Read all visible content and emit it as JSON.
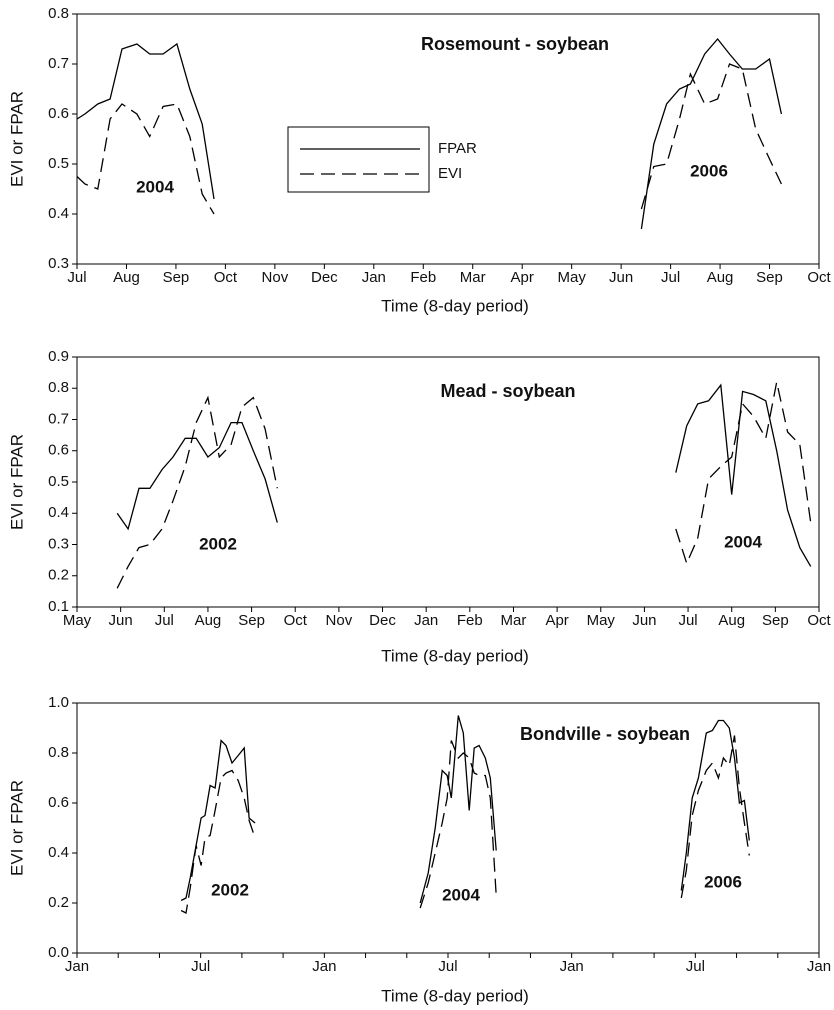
{
  "chart_data": [
    {
      "type": "line",
      "title": "Rosemount - soybean",
      "xlabel": "Time (8-day period)",
      "ylabel": "EVI or FPAR",
      "annotations": [
        "2004",
        "2006"
      ],
      "legend": true,
      "legend_position": "center",
      "x": [
        0,
        0.16,
        0.42,
        0.67,
        0.91,
        1.21,
        1.47,
        1.74,
        2.02,
        2.28,
        2.53,
        2.77,
        null,
        11.41,
        11.66,
        11.92,
        12.18,
        12.4,
        12.69,
        12.95,
        13.19,
        13.45,
        13.72,
        14.0,
        14.24
      ],
      "series": [
        {
          "name": "FPAR",
          "color": "#000000",
          "dash": "solid",
          "values": [
            0.59,
            0.6,
            0.62,
            0.63,
            0.73,
            0.74,
            0.72,
            0.72,
            0.74,
            0.65,
            0.58,
            0.43,
            null,
            0.37,
            0.54,
            0.62,
            0.65,
            0.66,
            0.72,
            0.75,
            0.72,
            0.69,
            0.69,
            0.71,
            0.6
          ]
        },
        {
          "name": "EVI",
          "color": "#000000",
          "dash": "dashed",
          "values": [
            0.475,
            0.46,
            0.45,
            0.59,
            0.62,
            0.6,
            0.555,
            0.615,
            0.62,
            0.555,
            0.44,
            0.4,
            null,
            0.41,
            0.495,
            0.5,
            0.59,
            0.68,
            0.62,
            0.63,
            0.7,
            0.69,
            0.57,
            0.51,
            0.46
          ]
        }
      ],
      "xlim": [
        0,
        15
      ],
      "xticks": [
        {
          "value": 0,
          "label": "Jul"
        },
        {
          "value": 1,
          "label": "Aug"
        },
        {
          "value": 2,
          "label": "Sep"
        },
        {
          "value": 3,
          "label": "Oct"
        },
        {
          "value": 4,
          "label": "Nov"
        },
        {
          "value": 5,
          "label": "Dec"
        },
        {
          "value": 6,
          "label": "Jan"
        },
        {
          "value": 7,
          "label": "Feb"
        },
        {
          "value": 8,
          "label": "Mar"
        },
        {
          "value": 9,
          "label": "Apr"
        },
        {
          "value": 10,
          "label": "May"
        },
        {
          "value": 11,
          "label": "Jun"
        },
        {
          "value": 12,
          "label": "Jul"
        },
        {
          "value": 13,
          "label": "Aug"
        },
        {
          "value": 14,
          "label": "Sep"
        },
        {
          "value": 15,
          "label": "Oct"
        }
      ],
      "ylim": [
        0.3,
        0.8
      ],
      "yticks": [
        0.3,
        0.4,
        0.5,
        0.6,
        0.7,
        0.8
      ]
    },
    {
      "type": "line",
      "title": "Mead - soybean",
      "xlabel": "Time (8-day period)",
      "ylabel": "EVI or FPAR",
      "annotations": [
        "2002",
        "2004"
      ],
      "legend": false,
      "x": [
        0.92,
        1.17,
        1.42,
        1.67,
        1.95,
        2.2,
        2.48,
        2.73,
        3.0,
        3.26,
        3.53,
        3.78,
        4.04,
        4.31,
        4.59,
        null,
        13.72,
        13.97,
        14.22,
        14.47,
        14.75,
        15.0,
        15.25,
        15.5,
        15.78,
        16.03,
        16.28,
        16.56,
        16.81
      ],
      "series": [
        {
          "name": "FPAR",
          "color": "#000000",
          "dash": "solid",
          "values": [
            0.4,
            0.35,
            0.48,
            0.48,
            0.54,
            0.58,
            0.64,
            0.64,
            0.58,
            0.61,
            0.69,
            0.69,
            0.6,
            0.51,
            0.37,
            null,
            0.53,
            0.68,
            0.75,
            0.76,
            0.81,
            0.46,
            0.79,
            0.78,
            0.76,
            0.6,
            0.41,
            0.29,
            0.23
          ]
        },
        {
          "name": "EVI",
          "color": "#000000",
          "dash": "dashed",
          "values": [
            0.16,
            0.23,
            0.29,
            0.3,
            0.35,
            0.44,
            0.55,
            0.69,
            0.77,
            0.58,
            0.62,
            0.74,
            0.77,
            0.67,
            0.48,
            null,
            0.35,
            0.24,
            0.32,
            0.51,
            0.55,
            0.58,
            0.75,
            0.71,
            0.64,
            0.82,
            0.66,
            0.62,
            0.37
          ]
        }
      ],
      "xlim": [
        0,
        17
      ],
      "xticks": [
        {
          "value": 0,
          "label": "May"
        },
        {
          "value": 1,
          "label": "Jun"
        },
        {
          "value": 2,
          "label": "Jul"
        },
        {
          "value": 3,
          "label": "Aug"
        },
        {
          "value": 4,
          "label": "Sep"
        },
        {
          "value": 5,
          "label": "Oct"
        },
        {
          "value": 6,
          "label": "Nov"
        },
        {
          "value": 7,
          "label": "Dec"
        },
        {
          "value": 8,
          "label": "Jan"
        },
        {
          "value": 9,
          "label": "Feb"
        },
        {
          "value": 10,
          "label": "Mar"
        },
        {
          "value": 11,
          "label": "Apr"
        },
        {
          "value": 12,
          "label": "May"
        },
        {
          "value": 13,
          "label": "Jun"
        },
        {
          "value": 14,
          "label": "Jul"
        },
        {
          "value": 15,
          "label": "Aug"
        },
        {
          "value": 16,
          "label": "Sep"
        },
        {
          "value": 17,
          "label": "Oct"
        }
      ],
      "ylim": [
        0.1,
        0.9
      ],
      "yticks": [
        0.1,
        0.2,
        0.3,
        0.4,
        0.5,
        0.6,
        0.7,
        0.8,
        0.9
      ]
    },
    {
      "type": "line",
      "title": "Bondville - soybean",
      "xlabel": "Time (8-day period)",
      "ylabel": "EVI or FPAR",
      "annotations": [
        "2002",
        "2004",
        "2006"
      ],
      "legend": false,
      "x": [
        5.05,
        5.29,
        5.49,
        5.78,
        6.02,
        6.21,
        6.46,
        6.7,
        6.99,
        7.23,
        7.52,
        7.82,
        8.11,
        8.35,
        8.64,
        null,
        16.65,
        17.04,
        17.38,
        17.72,
        17.96,
        18.16,
        18.5,
        18.74,
        19.03,
        19.27,
        19.51,
        19.81,
        20.05,
        20.34,
        null,
        29.32,
        29.56,
        29.85,
        30.15,
        30.53,
        30.83,
        31.12,
        31.36,
        31.65,
        31.9,
        32.14,
        32.38,
        32.62
      ],
      "series": [
        {
          "name": "FPAR",
          "color": "#000000",
          "dash": "solid",
          "values": [
            0.21,
            0.22,
            0.3,
            0.43,
            0.54,
            0.55,
            0.67,
            0.66,
            0.85,
            0.83,
            0.76,
            0.79,
            0.82,
            0.54,
            0.52,
            null,
            0.2,
            0.32,
            0.5,
            0.73,
            0.71,
            0.62,
            0.95,
            0.88,
            0.57,
            0.82,
            0.83,
            0.78,
            0.7,
            0.41,
            null,
            0.25,
            0.4,
            0.62,
            0.7,
            0.88,
            0.89,
            0.93,
            0.93,
            0.9,
            0.78,
            0.6,
            0.61,
            0.45
          ]
        },
        {
          "name": "EVI",
          "color": "#000000",
          "dash": "dashed",
          "values": [
            0.17,
            0.16,
            0.26,
            0.43,
            0.35,
            0.46,
            0.47,
            0.57,
            0.7,
            0.72,
            0.73,
            0.69,
            0.62,
            0.53,
            0.46,
            null,
            0.18,
            0.28,
            0.4,
            0.52,
            0.62,
            0.85,
            0.78,
            0.8,
            0.78,
            0.72,
            0.71,
            0.71,
            0.62,
            0.23,
            null,
            0.22,
            0.33,
            0.55,
            0.65,
            0.73,
            0.76,
            0.7,
            0.78,
            0.75,
            0.87,
            0.66,
            0.52,
            0.39
          ]
        }
      ],
      "xlim": [
        0,
        36
      ],
      "xticks": [
        {
          "value": 0,
          "label": "Jan"
        },
        {
          "value": 6,
          "label": "Jul"
        },
        {
          "value": 12,
          "label": "Jan"
        },
        {
          "value": 18,
          "label": "Jul"
        },
        {
          "value": 24,
          "label": "Jan"
        },
        {
          "value": 30,
          "label": "Jul"
        },
        {
          "value": 36,
          "label": "Jan"
        }
      ],
      "xminorticks": [
        2,
        4,
        8,
        10,
        14,
        16,
        20,
        22,
        26,
        28,
        32,
        34
      ],
      "ylim": [
        0.0,
        1.0
      ],
      "yticks": [
        {
          "value": 0.0,
          "label": "0.0"
        },
        0.2,
        0.4,
        0.6,
        0.8,
        {
          "value": 1.0,
          "label": "1.0"
        }
      ]
    }
  ]
}
